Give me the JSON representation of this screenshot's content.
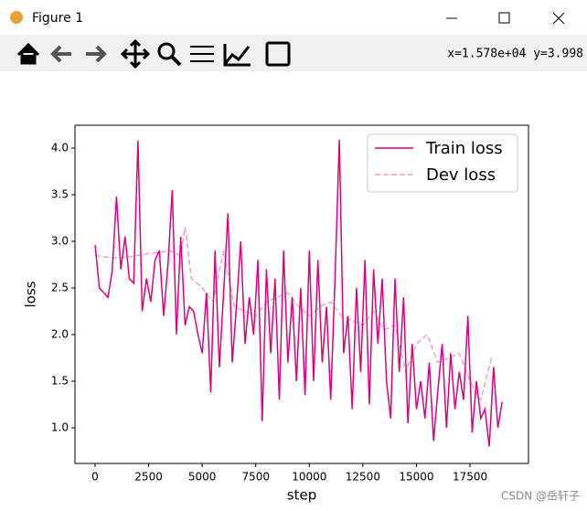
{
  "window": {
    "title": "Figure 1",
    "coords": "x=1.578e+04 y=3.998",
    "watermark": "CSDN @岳轩子"
  },
  "chart_data": {
    "type": "line",
    "xlabel": "step",
    "ylabel": "loss",
    "xlim": [
      -939,
      20230
    ],
    "ylim": [
      0.618,
      4.245
    ],
    "xticks": [
      0,
      2500,
      5000,
      7500,
      10000,
      12500,
      15000,
      17500
    ],
    "yticks": [
      {
        "value": 1.0,
        "label": "1.0"
      },
      {
        "value": 1.5,
        "label": "1.5"
      },
      {
        "value": 2.0,
        "label": "2.0"
      },
      {
        "value": 2.5,
        "label": "2.5"
      },
      {
        "value": 3.0,
        "label": "3.0"
      },
      {
        "value": 3.5,
        "label": "3.5"
      },
      {
        "value": 4.0,
        "label": "4.0"
      }
    ],
    "legend": "upper right",
    "series": [
      {
        "name": "Train loss",
        "color": "#e0007f",
        "dash": false,
        "x": [
          0,
          200,
          400,
          600,
          800,
          1000,
          1200,
          1400,
          1600,
          1800,
          2000,
          2200,
          2400,
          2600,
          2800,
          3000,
          3200,
          3400,
          3600,
          3800,
          4000,
          4200,
          4400,
          4600,
          4800,
          5000,
          5200,
          5400,
          5600,
          5800,
          6000,
          6200,
          6400,
          6600,
          6800,
          7000,
          7200,
          7400,
          7600,
          7800,
          8000,
          8200,
          8400,
          8600,
          8800,
          9000,
          9200,
          9400,
          9600,
          9800,
          10000,
          10200,
          10400,
          10600,
          10800,
          11000,
          11200,
          11400,
          11600,
          11800,
          12000,
          12200,
          12400,
          12600,
          12800,
          13000,
          13200,
          13400,
          13600,
          13800,
          14000,
          14200,
          14400,
          14600,
          14800,
          15000,
          15200,
          15400,
          15600,
          15800,
          16000,
          16200,
          16400,
          16600,
          16800,
          17000,
          17200,
          17400,
          17600,
          17800,
          18000,
          18200,
          18400,
          18600,
          18800,
          19000
        ],
        "values": [
          2.96,
          2.5,
          2.45,
          2.4,
          2.68,
          3.48,
          2.7,
          3.05,
          2.6,
          2.55,
          4.08,
          2.25,
          2.6,
          2.35,
          2.8,
          2.9,
          2.2,
          2.75,
          3.55,
          2.0,
          3.05,
          2.1,
          2.3,
          2.25,
          2.0,
          1.8,
          2.45,
          1.38,
          2.9,
          1.65,
          2.45,
          3.3,
          1.7,
          2.3,
          3.0,
          1.9,
          2.4,
          2.0,
          2.8,
          1.07,
          2.7,
          1.8,
          2.6,
          1.3,
          2.9,
          1.7,
          2.4,
          1.5,
          2.5,
          1.35,
          2.9,
          1.5,
          2.8,
          1.7,
          2.3,
          1.3,
          2.6,
          4.09,
          1.8,
          2.2,
          1.2,
          2.5,
          1.6,
          2.8,
          1.25,
          2.7,
          1.9,
          2.6,
          1.5,
          1.1,
          2.6,
          1.6,
          2.4,
          1.05,
          1.9,
          1.2,
          1.5,
          1.1,
          1.7,
          0.86,
          1.4,
          1.9,
          1.0,
          1.8,
          1.2,
          1.6,
          1.3,
          2.2,
          0.95,
          1.5,
          1.1,
          1.2,
          0.8,
          1.65,
          1.0,
          1.28
        ]
      },
      {
        "name": "Dev loss",
        "color": "#f4a0c0",
        "dash": true,
        "x": [
          0,
          500,
          1000,
          1500,
          2000,
          2500,
          3000,
          3500,
          4000,
          4200,
          4500,
          5000,
          5500,
          6000,
          6500,
          7000,
          7500,
          8000,
          8500,
          9000,
          9500,
          10000,
          10500,
          11000,
          11500,
          12000,
          12500,
          13000,
          13500,
          14000,
          14500,
          15000,
          15500,
          16000,
          16500,
          17000,
          17500,
          18000,
          18500
        ],
        "values": [
          2.85,
          2.83,
          2.82,
          2.83,
          2.85,
          2.87,
          2.88,
          2.9,
          2.85,
          3.15,
          2.6,
          2.5,
          2.35,
          2.9,
          2.3,
          2.25,
          2.2,
          2.35,
          2.4,
          2.45,
          2.3,
          2.2,
          2.3,
          2.35,
          2.2,
          2.15,
          2.1,
          2.25,
          2.05,
          2.1,
          1.6,
          1.9,
          2.0,
          1.7,
          1.75,
          1.8,
          1.5,
          1.3,
          1.75
        ]
      }
    ]
  }
}
